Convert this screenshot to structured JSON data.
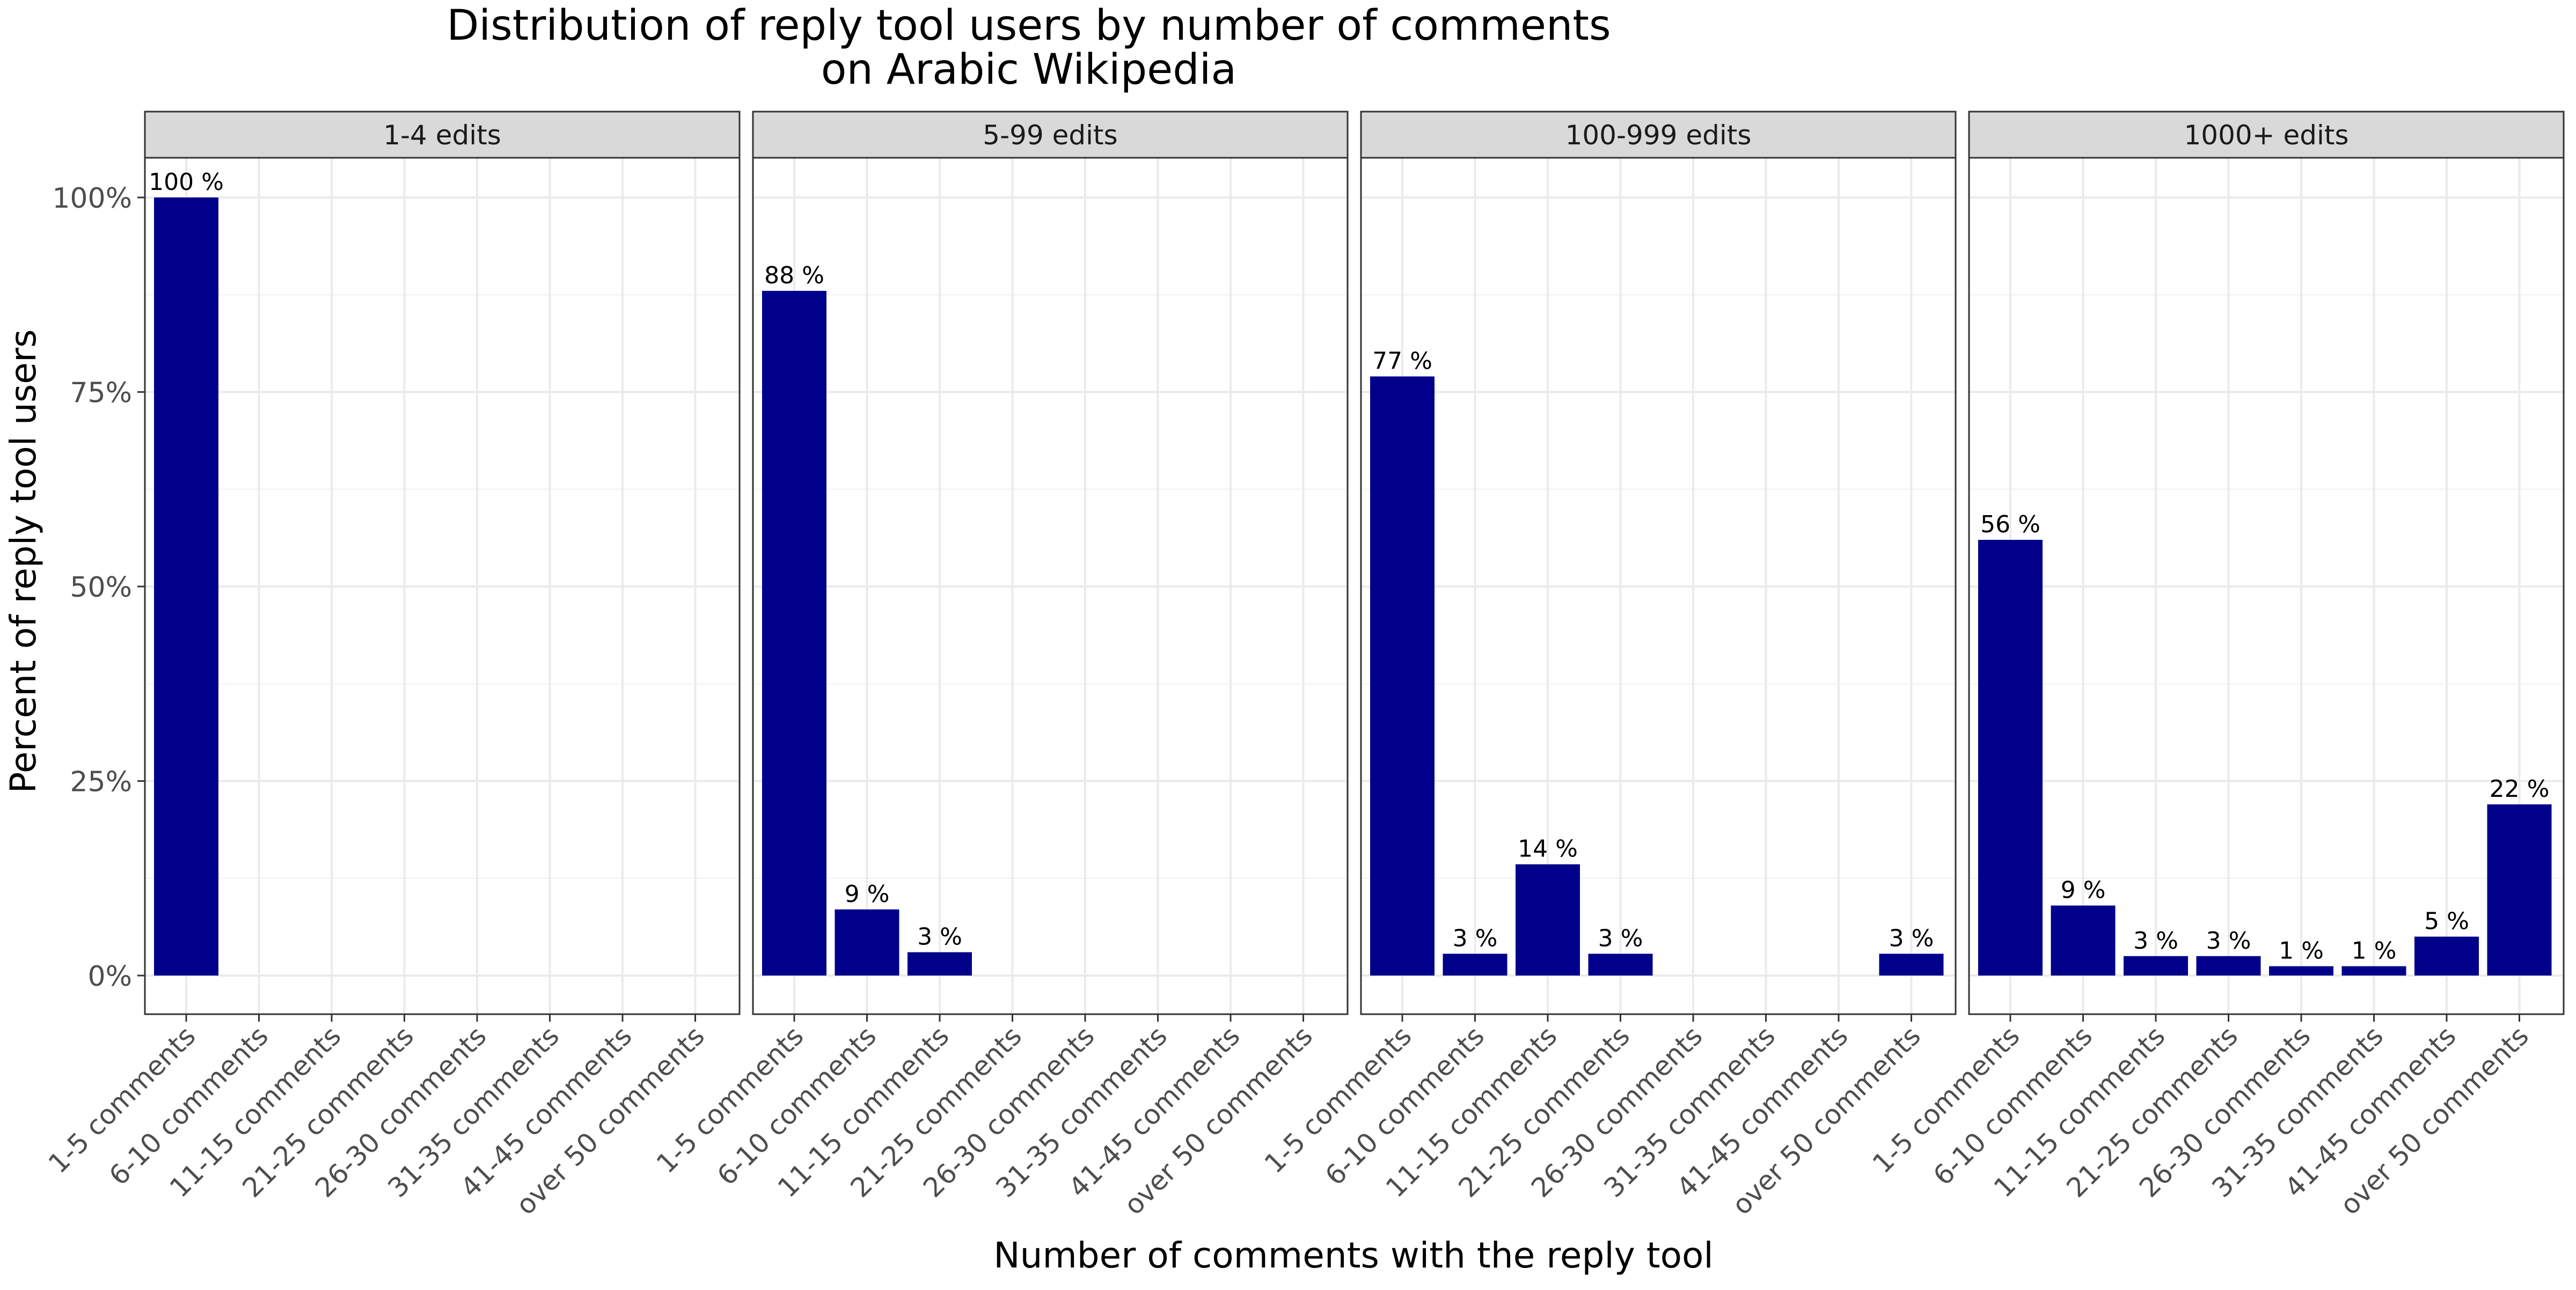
{
  "chart_data": {
    "type": "bar",
    "title_line1": "Distribution of reply tool users by number of comments",
    "title_line2": "on Arabic Wikipedia",
    "xlabel": "Number of comments with the reply tool",
    "ylabel": "Percent of reply tool users",
    "ylim": [
      0,
      1.05
    ],
    "y_ticks": [
      {
        "value": 0,
        "label": "0%"
      },
      {
        "value": 0.25,
        "label": "25%"
      },
      {
        "value": 0.5,
        "label": "50%"
      },
      {
        "value": 0.75,
        "label": "75%"
      },
      {
        "value": 1.0,
        "label": "100%"
      }
    ],
    "categories": [
      "1-5 comments",
      "6-10 comments",
      "11-15 comments",
      "21-25 comments",
      "26-30 comments",
      "31-35 comments",
      "41-45 comments",
      "over 50 comments"
    ],
    "bar_color": "#00008B",
    "grid": true,
    "facets": [
      {
        "name": "1-4 edits",
        "values": [
          1.0,
          null,
          null,
          null,
          null,
          null,
          null,
          null
        ],
        "labels": [
          "100 %",
          "",
          "",
          "",
          "",
          "",
          "",
          ""
        ]
      },
      {
        "name": "5-99 edits",
        "values": [
          0.88,
          0.085,
          0.03,
          null,
          null,
          null,
          null,
          null
        ],
        "labels": [
          "88 %",
          "9 %",
          "3 %",
          "",
          "",
          "",
          "",
          ""
        ]
      },
      {
        "name": "100-999 edits",
        "values": [
          0.77,
          0.028,
          0.143,
          0.028,
          null,
          null,
          null,
          0.028
        ],
        "labels": [
          "77 %",
          "3 %",
          "14 %",
          "3 %",
          "",
          "",
          "",
          "3 %"
        ]
      },
      {
        "name": "1000+ edits",
        "values": [
          0.56,
          0.09,
          0.025,
          0.025,
          0.012,
          0.012,
          0.05,
          0.22
        ],
        "labels": [
          "56 %",
          "9 %",
          "3 %",
          "3 %",
          "1 %",
          "1 %",
          "5 %",
          "22 %"
        ]
      }
    ]
  }
}
